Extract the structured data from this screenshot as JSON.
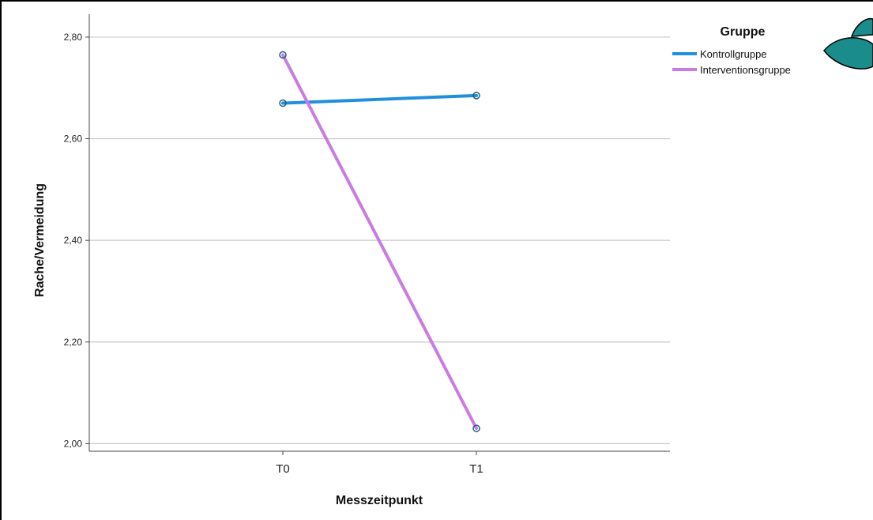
{
  "chart_data": {
    "type": "line",
    "categories": [
      "T0",
      "T1"
    ],
    "series": [
      {
        "name": "Kontrollgruppe",
        "values": [
          2.67,
          2.685
        ],
        "color": "#1f8fde"
      },
      {
        "name": "Interventionsgruppe",
        "values": [
          2.765,
          2.03
        ],
        "color": "#c97be2"
      }
    ],
    "xlabel": "Messzeitpunkt",
    "ylabel": "Rache/Vermeidung",
    "ylim": [
      1.985,
      2.845
    ],
    "yticks": [
      2.0,
      2.2,
      2.4,
      2.6,
      2.8
    ],
    "ytick_labels": [
      "2,00",
      "2,20",
      "2,40",
      "2,60",
      "2,80"
    ],
    "legend_title": "Gruppe",
    "legend_position": "top-right",
    "grid": "horizontal"
  },
  "decoration": {
    "icon": "fish-icon",
    "color": "#1a8c8c"
  }
}
